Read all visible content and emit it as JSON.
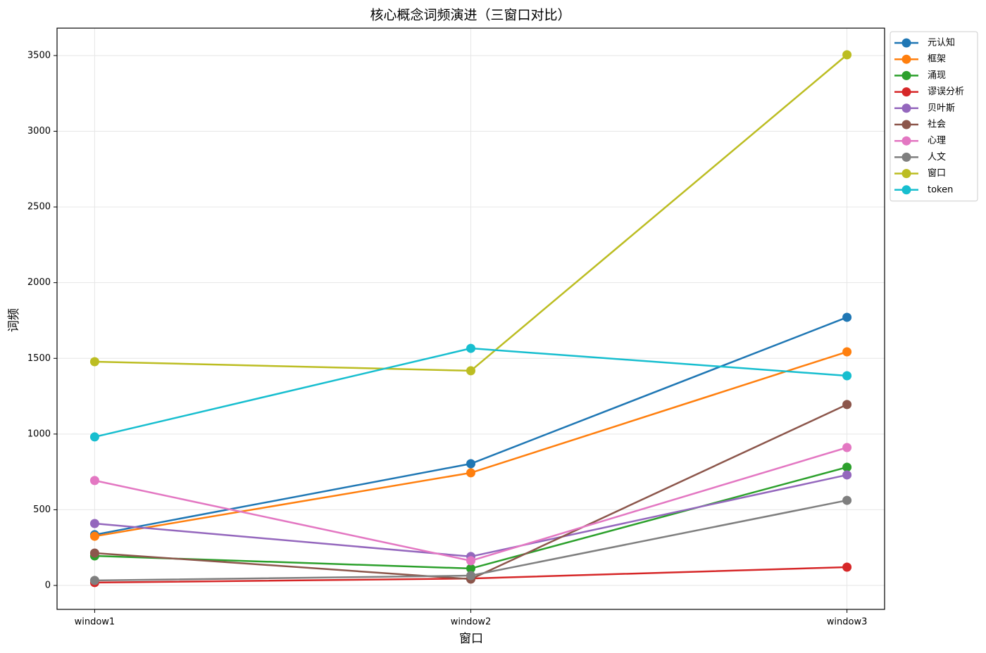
{
  "chart_data": {
    "type": "line",
    "title": "核心概念词频演进（三窗口对比）",
    "x_label": "窗口",
    "y_label": "词频",
    "categories": [
      "window1",
      "window2",
      "window3"
    ],
    "series": [
      {
        "name": "元认知",
        "color": "#1f77b4",
        "values": [
          335,
          804,
          1771
        ]
      },
      {
        "name": "框架",
        "color": "#ff7f0e",
        "values": [
          325,
          744,
          1543
        ]
      },
      {
        "name": "涌现",
        "color": "#2ca02c",
        "values": [
          195,
          112,
          781
        ]
      },
      {
        "name": "谬误分析",
        "color": "#d62728",
        "values": [
          19,
          46,
          121
        ]
      },
      {
        "name": "贝叶斯",
        "color": "#9467bd",
        "values": [
          409,
          191,
          730
        ]
      },
      {
        "name": "社会",
        "color": "#8c564b",
        "values": [
          214,
          42,
          1195
        ]
      },
      {
        "name": "心理",
        "color": "#e377c2",
        "values": [
          693,
          163,
          911
        ]
      },
      {
        "name": "人文",
        "color": "#7f7f7f",
        "values": [
          33,
          65,
          562
        ]
      },
      {
        "name": "窗口",
        "color": "#bcbd22",
        "values": [
          1478,
          1418,
          3505
        ]
      },
      {
        "name": "token",
        "color": "#17becf",
        "values": [
          981,
          1566,
          1385
        ]
      }
    ],
    "ylim": [
      -158,
      3681
    ],
    "yticks": [
      0,
      500,
      1000,
      1500,
      2000,
      2500,
      3000,
      3500
    ],
    "grid": true,
    "legend": "right"
  }
}
